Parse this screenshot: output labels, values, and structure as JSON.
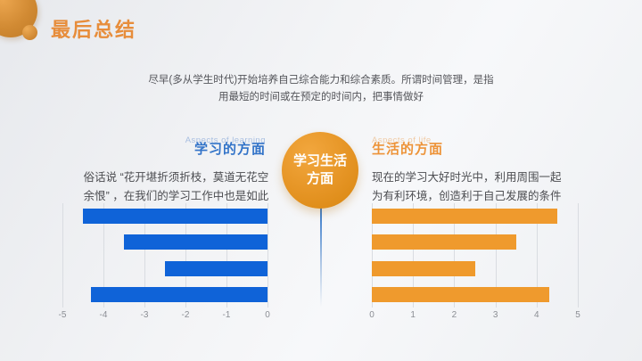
{
  "slide": {
    "title": "最后总结",
    "intro_line1": "尽早(多从学生时代)开始培养自己综合能力和综合素质。所谓时间管理，是指",
    "intro_line2": "用最短的时间或在预定的时间内，把事情做好"
  },
  "center_node": {
    "line1": "学习生活",
    "line2": "方面"
  },
  "left_section": {
    "subtitle_en": "Aspects of learning",
    "title": "学习的方面",
    "body_line1": "俗话说 “花开堪折须折枝，莫道无花空",
    "body_line2": "余恨” ，在我们的学习工作中也是如此"
  },
  "right_section": {
    "subtitle_en": "Aspects of life",
    "title": "生活的方面",
    "body_line1": "现在的学习大好时光中，利用周围一起",
    "body_line2": "为有利环境，创造利于自己发展的条件"
  },
  "colors": {
    "accent_orange": "#e78d3b",
    "bar_blue": "#0f63d8",
    "bar_orange": "#ef9a2d",
    "header_blue": "#3273c8",
    "header_orange": "#ed9338"
  },
  "chart_data": [
    {
      "type": "bar",
      "orientation": "horizontal",
      "title": "",
      "series_name": "学习的方面",
      "values_top_to_bottom": [
        -4.5,
        -3.5,
        -2.5,
        -4.3
      ],
      "xlim": [
        -5,
        0
      ],
      "ticks": [
        "-5",
        "-4",
        "-3",
        "-2",
        "-1",
        "0"
      ],
      "bar_color": "#0f63d8",
      "bars_anchor": "right",
      "grid": true,
      "legend": false
    },
    {
      "type": "bar",
      "orientation": "horizontal",
      "title": "",
      "series_name": "生活的方面",
      "values_top_to_bottom": [
        4.5,
        3.5,
        2.5,
        4.3
      ],
      "xlim": [
        0,
        5
      ],
      "ticks": [
        "0",
        "1",
        "2",
        "3",
        "4",
        "5"
      ],
      "bar_color": "#ef9a2d",
      "bars_anchor": "left",
      "grid": true,
      "legend": false
    }
  ]
}
